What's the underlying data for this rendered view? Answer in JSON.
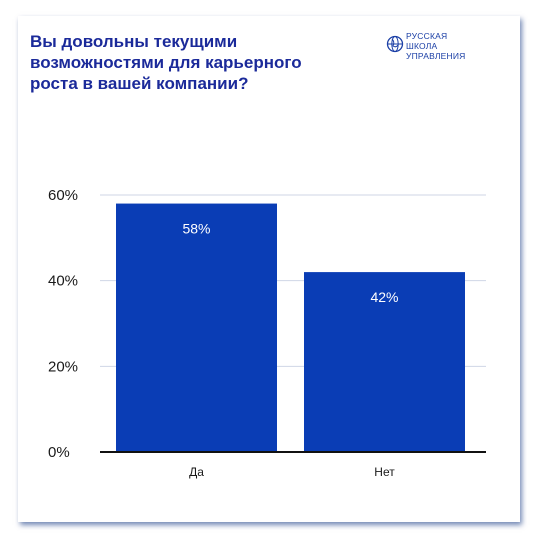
{
  "title": "Вы довольны текущими возможностями для карьерного роста в вашей компании?",
  "logo": {
    "lines": [
      "РУССКАЯ",
      "ШКОЛА",
      "УПРАВЛЕНИЯ"
    ],
    "icon": "globe-logo-icon"
  },
  "colors": {
    "bar": "#0a3db5",
    "title": "#1b2a9a",
    "grid": "#cfd6e6",
    "axis": "#111111"
  },
  "chart_data": {
    "type": "bar",
    "categories": [
      "Да",
      "Нет"
    ],
    "values": [
      58,
      42
    ],
    "value_labels": [
      "58%",
      "42%"
    ],
    "ylim": [
      0,
      60
    ],
    "yticks": [
      0,
      20,
      40,
      60
    ],
    "ytick_labels": [
      "0%",
      "20%",
      "40%",
      "60%"
    ],
    "grid": true,
    "xlabel": "",
    "ylabel": ""
  }
}
